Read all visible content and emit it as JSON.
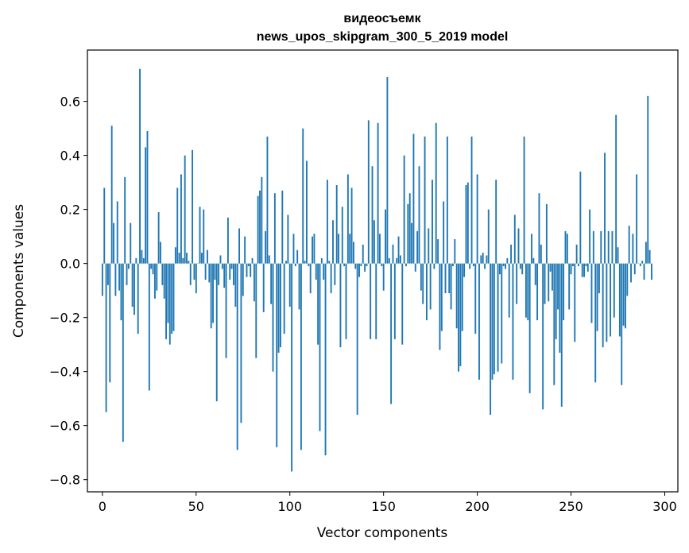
{
  "chart_data": {
    "type": "bar",
    "title_lines": [
      "видеосъемк",
      "news_upos_skipgram_300_5_2019 model"
    ],
    "xlabel": "Vector components",
    "ylabel": "Components values",
    "xlim": [
      -8,
      307
    ],
    "ylim": [
      -0.845,
      0.79
    ],
    "xticks": [
      0,
      50,
      100,
      150,
      200,
      250,
      300
    ],
    "xtick_labels": [
      "0",
      "50",
      "100",
      "150",
      "200",
      "250",
      "300"
    ],
    "yticks": [
      0.6,
      0.4,
      0.2,
      0.0,
      -0.2,
      -0.4,
      -0.6,
      -0.8
    ],
    "ytick_labels": [
      "0.6",
      "0.4",
      "0.2",
      "0.0",
      "−0.2",
      "−0.4",
      "−0.6",
      "−0.8"
    ],
    "bar_color": "#1f77b4",
    "values": [
      -0.12,
      0.28,
      -0.55,
      -0.08,
      -0.44,
      0.51,
      0.15,
      -0.12,
      0.23,
      -0.1,
      -0.21,
      -0.66,
      0.32,
      -0.08,
      -0.02,
      0.15,
      -0.16,
      -0.19,
      0.02,
      -0.26,
      0.72,
      0.05,
      0.02,
      0.43,
      0.49,
      -0.47,
      -0.02,
      -0.04,
      -0.13,
      -0.1,
      0.19,
      0.08,
      -0.08,
      -0.13,
      -0.28,
      -0.22,
      -0.3,
      -0.26,
      -0.25,
      0.06,
      0.28,
      0.04,
      0.33,
      0.02,
      0.4,
      0.04,
      0.01,
      -0.08,
      0.42,
      -0.06,
      -0.11,
      0.0,
      0.21,
      0.04,
      0.2,
      -0.06,
      0.05,
      -0.07,
      -0.24,
      -0.22,
      -0.06,
      -0.51,
      -0.08,
      0.03,
      -0.02,
      -0.09,
      -0.35,
      0.17,
      -0.06,
      -0.02,
      -0.08,
      -0.16,
      -0.69,
      0.13,
      -0.59,
      -0.12,
      0.1,
      -0.05,
      -0.01,
      -0.05,
      0.02,
      -0.14,
      -0.35,
      0.25,
      0.27,
      0.32,
      -0.18,
      0.12,
      0.47,
      0.03,
      -0.15,
      -0.4,
      0.26,
      -0.68,
      -0.33,
      -0.31,
      0.27,
      -0.26,
      0.01,
      0.18,
      -0.16,
      -0.77,
      0.11,
      -0.01,
      0.05,
      -0.17,
      -0.69,
      0.5,
      0.01,
      0.38,
      -0.01,
      -0.11,
      0.1,
      0.11,
      -0.06,
      -0.3,
      -0.62,
      0.02,
      -0.06,
      -0.71,
      0.31,
      0.01,
      -0.11,
      0.16,
      -0.08,
      0.29,
      0.11,
      -0.31,
      0.21,
      -0.01,
      -0.28,
      0.33,
      0.11,
      0.28,
      0.08,
      -0.02,
      -0.56,
      -0.05,
      -0.01,
      0.07,
      -0.03,
      -0.01,
      0.53,
      -0.28,
      0.36,
      0.16,
      -0.28,
      0.52,
      0.11,
      -0.01,
      -0.1,
      0.2,
      0.69,
      0.02,
      -0.52,
      0.07,
      -0.28,
      0.02,
      0.1,
      0.03,
      -0.3,
      0.4,
      -0.01,
      0.22,
      0.26,
      0.15,
      0.48,
      -0.03,
      0.12,
      0.36,
      -0.1,
      -0.15,
      0.47,
      -0.21,
      0.13,
      -0.17,
      0.31,
      -0.02,
      0.52,
      0.09,
      -0.32,
      -0.25,
      0.23,
      -0.11,
      0.47,
      -0.11,
      -0.17,
      -0.01,
      0.09,
      -0.24,
      -0.4,
      -0.38,
      -0.25,
      -0.05,
      0.29,
      0.3,
      -0.02,
      0.47,
      -0.01,
      -0.26,
      0.33,
      -0.43,
      0.03,
      0.04,
      -0.02,
      0.03,
      0.2,
      -0.56,
      -0.43,
      -0.41,
      0.31,
      -0.4,
      -0.04,
      -0.37,
      -0.01,
      -0.02,
      0.02,
      -0.2,
      0.07,
      -0.43,
      0.18,
      -0.15,
      0.13,
      -0.02,
      -0.04,
      0.47,
      -0.2,
      -0.21,
      -0.48,
      0.11,
      0.02,
      -0.08,
      -0.21,
      0.26,
      0.07,
      -0.54,
      -0.15,
      0.22,
      -0.14,
      -0.03,
      -0.1,
      -0.45,
      -0.28,
      -0.17,
      -0.33,
      -0.53,
      -0.21,
      0.12,
      0.11,
      -0.17,
      -0.04,
      -0.01,
      -0.29,
      0.07,
      -0.01,
      0.34,
      -0.05,
      -0.05,
      -0.01,
      -0.03,
      0.2,
      -0.22,
      0.12,
      -0.44,
      -0.25,
      -0.11,
      0.12,
      -0.31,
      0.41,
      -0.29,
      0.12,
      -0.27,
      0.12,
      -0.2,
      0.55,
      0.06,
      -0.27,
      -0.45,
      -0.23,
      -0.24,
      -0.12,
      0.14,
      -0.07,
      0.11,
      -0.04,
      0.33,
      0.0,
      -0.01,
      0.01,
      -0.06,
      0.08,
      0.62,
      0.05,
      -0.06
    ]
  }
}
